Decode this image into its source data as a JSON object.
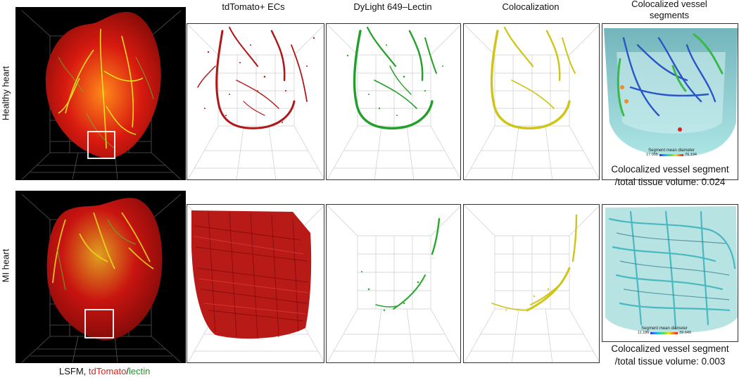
{
  "columns": {
    "td": "tdTomato+ ECs",
    "dy": "DyLight 649–Lectin",
    "co": "Colocalization",
    "seg_line1": "Colocalized vessel",
    "seg_line2": "segments"
  },
  "rows": {
    "healthy": "Healthy heart",
    "mi": "MI heart"
  },
  "colorbars": {
    "healthy": {
      "title": "Segment mean diameter",
      "min": "17.055",
      "max": "76.194"
    },
    "mi": {
      "title": "Segment mean diameter",
      "min": "11.186",
      "max": "39.649"
    }
  },
  "stats": {
    "healthy_line1": "Colocalized vessel segment",
    "healthy_line2": "/total tissue volume: 0.024",
    "mi_line1": "Colocalized vessel segment",
    "mi_line2": "/total tissue volume: 0.003"
  },
  "footer": {
    "prefix": "LSFM, ",
    "red": "tdTomato",
    "slash": "/",
    "green": "lectin"
  },
  "colors": {
    "tdtomato": "#e0201c",
    "lectin": "#1a9a2a",
    "coloc": "#d6c81a",
    "tissue": "#7fd0d0"
  }
}
